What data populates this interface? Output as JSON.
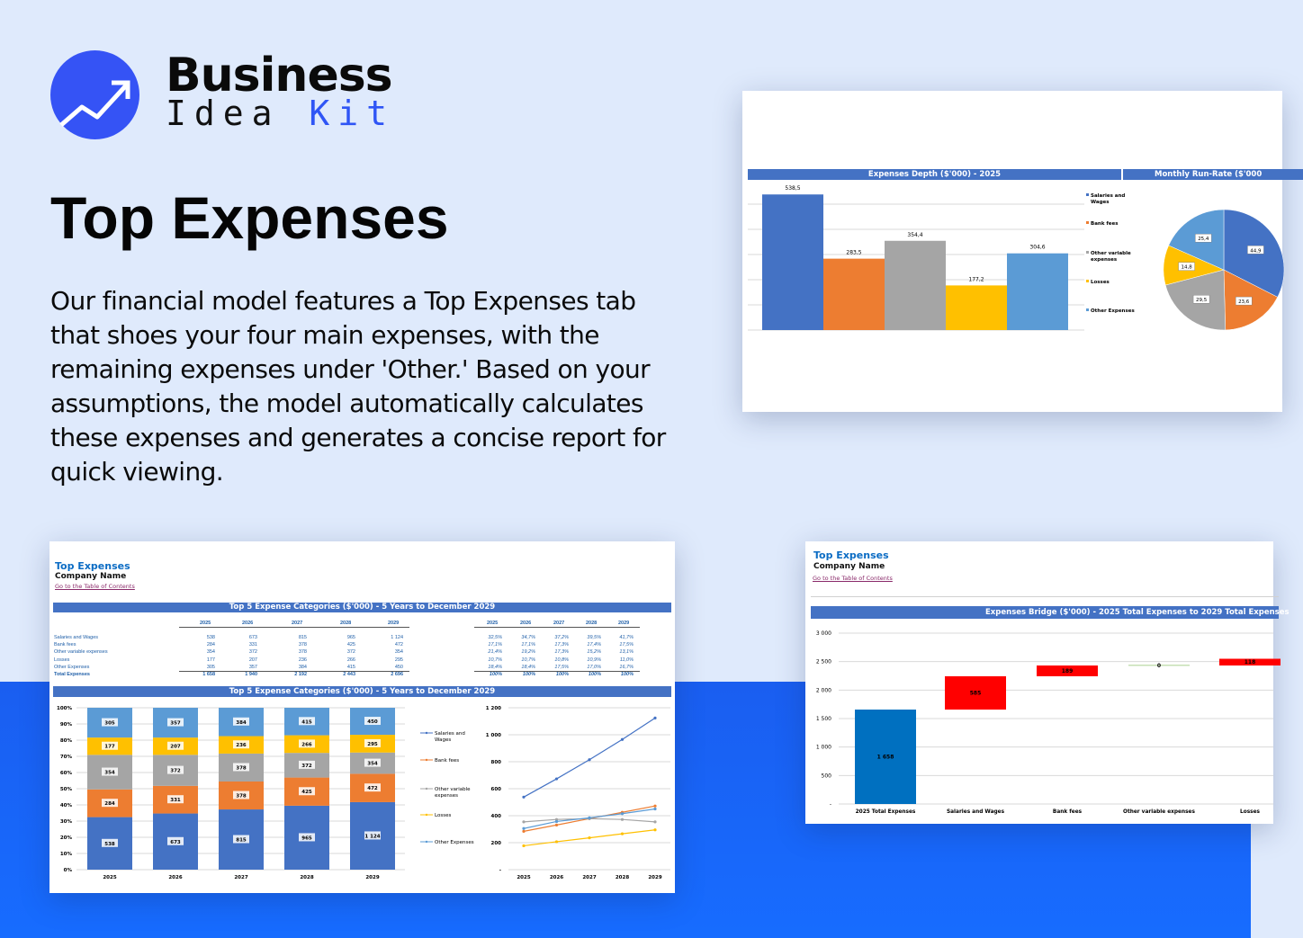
{
  "brand": {
    "line1": "Business",
    "line2a": "Idea",
    "line2b": "Kit"
  },
  "hero": {
    "title": "Top Expenses",
    "description": "Our financial model features a Top Expenses tab that shoes your four main expenses, with the remaining expenses under 'Other.' Based on your assumptions, the model automatically calculates these expenses and generates a concise report for quick viewing."
  },
  "colors": {
    "accent": "#3553f5",
    "header_bar": "#4472c4",
    "salaries": "#4472c4",
    "bank_fees": "#ed7d31",
    "other_variable": "#a5a5a5",
    "losses": "#ffc000",
    "other_expenses": "#5b9bd5",
    "bridge_total": "#0070c0",
    "bridge_increase": "#ff0000"
  },
  "depth_panel": {
    "header": "Expenses Depth ($'000) - 2025",
    "pie_header": "Monthly Run-Rate ($'000"
  },
  "sheet": {
    "title": "Top Expenses",
    "company": "Company Name",
    "link": "Go to the Table of Contents",
    "table_header": "Top 5 Expense Categories ($'000) - 5 Years to December 2029",
    "chart_header": "Top 5 Expense Categories ($'000) - 5 Years to December 2029",
    "years": [
      "2025",
      "2026",
      "2027",
      "2028",
      "2029"
    ],
    "rows": [
      {
        "label": "Salaries and Wages",
        "values": [
          "538",
          "673",
          "815",
          "965",
          "1 124"
        ],
        "pct": [
          "32,5%",
          "34,7%",
          "37,2%",
          "39,5%",
          "41,7%"
        ]
      },
      {
        "label": "Bank fees",
        "values": [
          "284",
          "331",
          "378",
          "425",
          "472"
        ],
        "pct": [
          "17,1%",
          "17,1%",
          "17,3%",
          "17,4%",
          "17,5%"
        ]
      },
      {
        "label": "Other variable expenses",
        "values": [
          "354",
          "372",
          "378",
          "372",
          "354"
        ],
        "pct": [
          "21,4%",
          "19,2%",
          "17,3%",
          "15,2%",
          "13,1%"
        ]
      },
      {
        "label": "Losses",
        "values": [
          "177",
          "207",
          "236",
          "266",
          "295"
        ],
        "pct": [
          "10,7%",
          "10,7%",
          "10,8%",
          "10,9%",
          "11,0%"
        ]
      },
      {
        "label": "Other Expenses",
        "values": [
          "305",
          "357",
          "384",
          "415",
          "450"
        ],
        "pct": [
          "18,4%",
          "18,4%",
          "17,5%",
          "17,0%",
          "16,7%"
        ]
      }
    ],
    "total": {
      "label": "Total Expenses",
      "values": [
        "1 658",
        "1 940",
        "2 192",
        "2 443",
        "2 696"
      ],
      "pct": [
        "100%",
        "100%",
        "100%",
        "100%",
        "100%"
      ]
    }
  },
  "bridge_sheet": {
    "title": "Top Expenses",
    "company": "Company Name",
    "link": "Go to the Table of Contents",
    "header": "Expenses Bridge ($'000) - 2025 Total Expenses to 2029 Total Expenses"
  },
  "chart_data": [
    {
      "id": "depth",
      "type": "bar",
      "title": "Expenses Depth ($'000) - 2025",
      "categories": [
        "Salaries and Wages",
        "Bank fees",
        "Other variable expenses",
        "Losses",
        "Other Expenses"
      ],
      "values": [
        538.5,
        283.5,
        354.4,
        177.2,
        304.6
      ],
      "value_labels": [
        "538,5",
        "283,5",
        "354,4",
        "177,2",
        "304,6"
      ],
      "ylim": [
        0,
        550
      ],
      "grid": true,
      "legend": "right"
    },
    {
      "id": "runrate",
      "type": "pie",
      "title": "Monthly Run-Rate ($'000",
      "categories": [
        "Salaries and Wages",
        "Bank fees",
        "Other variable expenses",
        "Losses",
        "Other Expenses"
      ],
      "values": [
        44.9,
        23.6,
        29.5,
        14.8,
        25.4
      ],
      "value_labels": [
        "44,9",
        "23,6",
        "29,5",
        "14,8",
        "25,4"
      ]
    },
    {
      "id": "stacked",
      "type": "bar",
      "stacked": "percent",
      "categories": [
        "2025",
        "2026",
        "2027",
        "2028",
        "2029"
      ],
      "yticks": [
        "0%",
        "10%",
        "20%",
        "30%",
        "40%",
        "50%",
        "60%",
        "70%",
        "80%",
        "90%",
        "100%"
      ],
      "series": [
        {
          "name": "Salaries and Wages",
          "values": [
            538,
            673,
            815,
            965,
            1124
          ]
        },
        {
          "name": "Bank fees",
          "values": [
            284,
            331,
            378,
            425,
            472
          ]
        },
        {
          "name": "Other variable expenses",
          "values": [
            354,
            372,
            378,
            372,
            354
          ]
        },
        {
          "name": "Losses",
          "values": [
            177,
            207,
            236,
            266,
            295
          ]
        },
        {
          "name": "Other Expenses",
          "values": [
            305,
            357,
            384,
            415,
            450
          ]
        }
      ],
      "legend": "right"
    },
    {
      "id": "lines",
      "type": "line",
      "categories": [
        "2025",
        "2026",
        "2027",
        "2028",
        "2029"
      ],
      "ylim": [
        0,
        1200
      ],
      "yticks": [
        "-",
        "200",
        "400",
        "600",
        "800",
        "1 000",
        "1 200"
      ],
      "grid": true,
      "series": [
        {
          "name": "Salaries and Wages",
          "values": [
            538,
            673,
            815,
            965,
            1124
          ]
        },
        {
          "name": "Bank fees",
          "values": [
            284,
            331,
            378,
            425,
            472
          ]
        },
        {
          "name": "Other variable expenses",
          "values": [
            354,
            372,
            378,
            372,
            354
          ]
        },
        {
          "name": "Losses",
          "values": [
            177,
            207,
            236,
            266,
            295
          ]
        },
        {
          "name": "Other Expenses",
          "values": [
            305,
            357,
            384,
            415,
            450
          ]
        }
      ]
    },
    {
      "id": "bridge",
      "type": "bar",
      "waterfall": true,
      "title": "Expenses Bridge ($'000) - 2025 Total Expenses to 2029 Total Expenses",
      "categories": [
        "2025 Total Expenses",
        "Salaries and Wages",
        "Bank fees",
        "Other variable expenses",
        "Losses"
      ],
      "values": [
        1658,
        585,
        189,
        0,
        118
      ],
      "value_labels": [
        "1 658",
        "585",
        "189",
        "0",
        "118"
      ],
      "ylim": [
        0,
        3000
      ],
      "yticks": [
        "-",
        "500",
        "1 000",
        "1 500",
        "2 000",
        "2 500",
        "3 000"
      ],
      "grid": true
    }
  ]
}
